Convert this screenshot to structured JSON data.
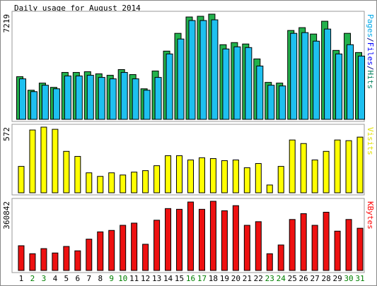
{
  "title": "Daily usage for August 2014",
  "chart_data": [
    {
      "type": "bar",
      "ylim": [
        0,
        7219
      ],
      "yticks": [
        7219
      ],
      "right_label": [
        {
          "text": "Pages",
          "color": "#00a8e8"
        },
        {
          "text": "/",
          "color": "#000080"
        },
        {
          "text": "Files",
          "color": "#0000ff"
        },
        {
          "text": "/",
          "color": "#000080"
        },
        {
          "text": "Hits",
          "color": "#00805c"
        }
      ],
      "series": [
        {
          "name": "Hits",
          "color": "#22b14c",
          "values": [
            2927,
            2000,
            2488,
            2195,
            3219,
            3219,
            3268,
            3122,
            3024,
            3415,
            3073,
            2097,
            3317,
            4683,
            5902,
            7024,
            7073,
            7219,
            5122,
            5268,
            5171,
            4146,
            2537,
            2488,
            6098,
            6293,
            5854,
            6732,
            4732,
            5902,
            4585
          ]
        },
        {
          "name": "Pages",
          "color": "#1ec0f0",
          "values": [
            2780,
            1902,
            2341,
            2097,
            2976,
            2976,
            3024,
            2878,
            2780,
            3219,
            2780,
            2000,
            2878,
            4488,
            5512,
            6780,
            6780,
            6829,
            4829,
            4976,
            4927,
            3659,
            2341,
            2293,
            5902,
            5951,
            5366,
            6195,
            4488,
            5122,
            4341
          ]
        }
      ]
    },
    {
      "type": "bar",
      "ylim": [
        0,
        572
      ],
      "yticks": [
        572
      ],
      "right_label": [
        {
          "text": "Visits",
          "color": "#e0e000"
        }
      ],
      "series": [
        {
          "name": "Visits",
          "color": "#ffff00",
          "values": [
            230,
            547,
            572,
            553,
            361,
            317,
            174,
            143,
            174,
            155,
            180,
            193,
            236,
            323,
            323,
            286,
            305,
            298,
            280,
            286,
            218,
            255,
            68,
            230,
            460,
            429,
            286,
            361,
            460,
            454,
            485
          ]
        }
      ]
    },
    {
      "type": "bar",
      "ylim": [
        0,
        360842
      ],
      "yticks": [
        360842
      ],
      "right_label": [
        {
          "text": "KBytes",
          "color": "#ff0000"
        }
      ],
      "series": [
        {
          "name": "KBytes",
          "color": "#ee1111",
          "values": [
            129000,
            87400,
            114000,
            91200,
            125300,
            102500,
            163300,
            201300,
            208900,
            235500,
            246900,
            136700,
            262100,
            322800,
            319000,
            357000,
            319000,
            360842,
            311400,
            338000,
            235500,
            254500,
            87400,
            132900,
            265900,
            296200,
            235500,
            303800,
            205100,
            265900,
            220300
          ]
        }
      ],
      "categories": [
        "1",
        "2",
        "3",
        "4",
        "5",
        "6",
        "7",
        "8",
        "9",
        "10",
        "11",
        "12",
        "13",
        "14",
        "15",
        "16",
        "17",
        "18",
        "19",
        "20",
        "21",
        "22",
        "23",
        "24",
        "25",
        "26",
        "27",
        "28",
        "29",
        "30",
        "31"
      ],
      "category_colors": [
        "#000",
        "#008000",
        "#008000",
        "#000",
        "#000",
        "#000",
        "#000",
        "#000",
        "#008000",
        "#008000",
        "#000",
        "#000",
        "#000",
        "#000",
        "#000",
        "#008000",
        "#008000",
        "#000",
        "#000",
        "#000",
        "#000",
        "#000",
        "#008000",
        "#008000",
        "#000",
        "#000",
        "#000",
        "#000",
        "#000",
        "#008000",
        "#008000"
      ]
    }
  ]
}
